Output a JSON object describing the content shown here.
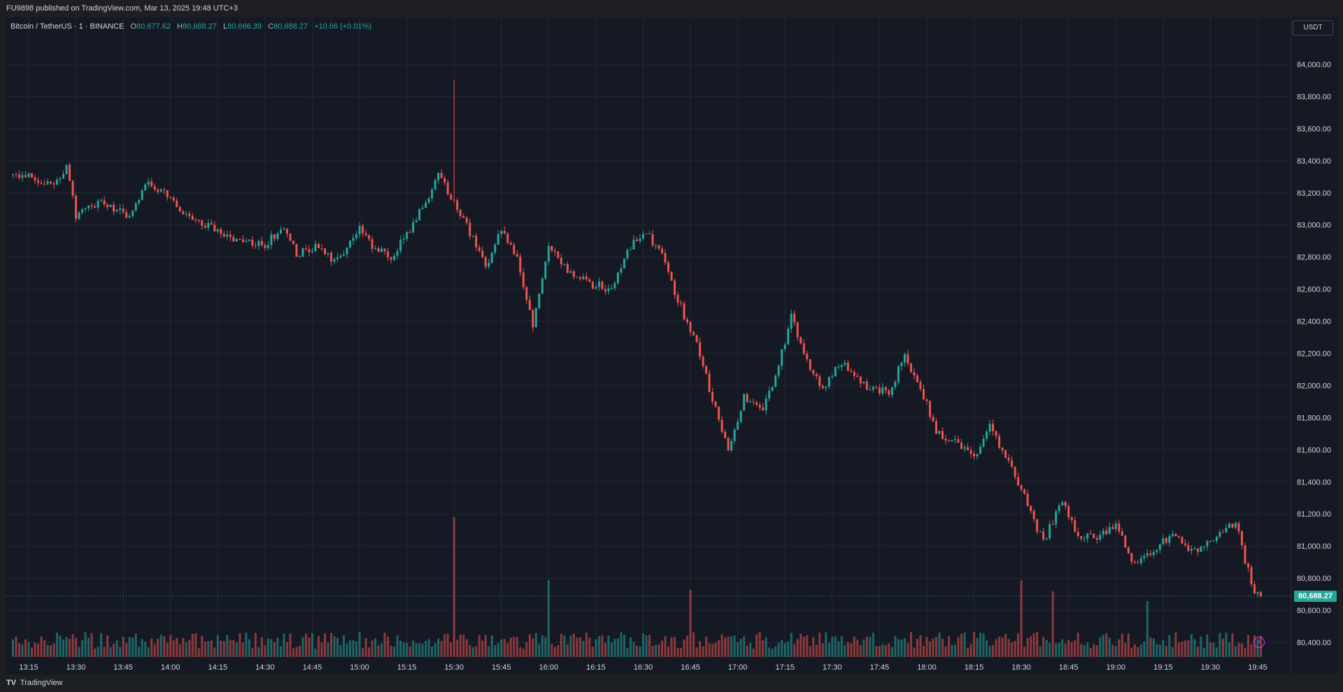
{
  "header": {
    "publisher_line": "FU9898 published on TradingView.com, Mar 13, 2025 19:48 UTC+3"
  },
  "legend": {
    "symbol": "Bitcoin / TetherUS · 1 · BINANCE",
    "open_label": "O",
    "open": "80,677.62",
    "high_label": "H",
    "high": "80,688.27",
    "low_label": "L",
    "low": "80,666.39",
    "close_label": "C",
    "close": "80,688.27",
    "change": "+10.66 (+0.01%)"
  },
  "price_axis": {
    "currency": "USDT",
    "last_price": "80,688.27"
  },
  "footer": {
    "logo": "TV",
    "brand": "TradingView"
  },
  "colors": {
    "up": "#26a69a",
    "down": "#ef5350",
    "background": "#151924",
    "grid": "#232733",
    "axis_text": "#d1d4dc",
    "alert": "#e040fb"
  },
  "icons": {
    "alert": "lightning-alert-icon"
  },
  "chart_data": {
    "type": "candlestick",
    "symbol": "BTCUSDT",
    "interval": "1",
    "exchange": "BINANCE",
    "x_ticks": [
      "13:15",
      "13:30",
      "13:45",
      "14:00",
      "14:15",
      "14:30",
      "14:45",
      "15:00",
      "15:15",
      "15:30",
      "15:45",
      "16:00",
      "16:15",
      "16:30",
      "16:45",
      "17:00",
      "17:15",
      "17:30",
      "17:45",
      "18:00",
      "18:15",
      "18:30",
      "18:45",
      "19:00",
      "19:15",
      "19:30",
      "19:45"
    ],
    "y_ticks": [
      "84,000.00",
      "83,800.00",
      "83,600.00",
      "83,400.00",
      "83,200.00",
      "83,000.00",
      "82,800.00",
      "82,600.00",
      "82,400.00",
      "82,200.00",
      "82,000.00",
      "81,800.00",
      "81,600.00",
      "81,400.00",
      "81,200.00",
      "81,000.00",
      "80,800.00",
      "80,600.00",
      "80,400.00"
    ],
    "ylim": [
      80350,
      84180
    ],
    "last_price": 80688.27,
    "grid": true,
    "path_keypoints": [
      {
        "time": "13:10",
        "price": 83300
      },
      {
        "time": "13:15",
        "price": 83320
      },
      {
        "time": "13:20",
        "price": 83260
      },
      {
        "time": "13:25",
        "price": 83280
      },
      {
        "time": "13:27",
        "price": 83390
      },
      {
        "time": "13:30",
        "price": 83050
      },
      {
        "time": "13:38",
        "price": 83150
      },
      {
        "time": "13:47",
        "price": 83050
      },
      {
        "time": "13:52",
        "price": 83270
      },
      {
        "time": "13:58",
        "price": 83200
      },
      {
        "time": "14:05",
        "price": 83060
      },
      {
        "time": "14:13",
        "price": 82980
      },
      {
        "time": "14:22",
        "price": 82900
      },
      {
        "time": "14:30",
        "price": 82880
      },
      {
        "time": "14:36",
        "price": 82990
      },
      {
        "time": "14:40",
        "price": 82820
      },
      {
        "time": "14:47",
        "price": 82860
      },
      {
        "time": "14:52",
        "price": 82760
      },
      {
        "time": "15:00",
        "price": 82970
      },
      {
        "time": "15:05",
        "price": 82850
      },
      {
        "time": "15:10",
        "price": 82800
      },
      {
        "time": "15:17",
        "price": 83000
      },
      {
        "time": "15:25",
        "price": 83300
      },
      {
        "time": "15:30",
        "price": 83150
      },
      {
        "time": "15:35",
        "price": 82950
      },
      {
        "time": "15:40",
        "price": 82740
      },
      {
        "time": "15:45",
        "price": 82980
      },
      {
        "time": "15:50",
        "price": 82780
      },
      {
        "time": "15:55",
        "price": 82380
      },
      {
        "time": "16:00",
        "price": 82860
      },
      {
        "time": "16:05",
        "price": 82730
      },
      {
        "time": "16:12",
        "price": 82640
      },
      {
        "time": "16:20",
        "price": 82600
      },
      {
        "time": "16:25",
        "price": 82850
      },
      {
        "time": "16:30",
        "price": 82960
      },
      {
        "time": "16:35",
        "price": 82850
      },
      {
        "time": "16:40",
        "price": 82580
      },
      {
        "time": "16:48",
        "price": 82200
      },
      {
        "time": "16:52",
        "price": 81900
      },
      {
        "time": "16:57",
        "price": 81620
      },
      {
        "time": "17:02",
        "price": 81920
      },
      {
        "time": "17:08",
        "price": 81850
      },
      {
        "time": "17:12",
        "price": 82050
      },
      {
        "time": "17:17",
        "price": 82430
      },
      {
        "time": "17:22",
        "price": 82150
      },
      {
        "time": "17:27",
        "price": 81980
      },
      {
        "time": "17:33",
        "price": 82150
      },
      {
        "time": "17:40",
        "price": 82000
      },
      {
        "time": "17:48",
        "price": 81960
      },
      {
        "time": "17:53",
        "price": 82180
      },
      {
        "time": "17:58",
        "price": 82000
      },
      {
        "time": "18:03",
        "price": 81700
      },
      {
        "time": "18:10",
        "price": 81640
      },
      {
        "time": "18:15",
        "price": 81540
      },
      {
        "time": "18:20",
        "price": 81740
      },
      {
        "time": "18:25",
        "price": 81560
      },
      {
        "time": "18:30",
        "price": 81350
      },
      {
        "time": "18:37",
        "price": 81020
      },
      {
        "time": "18:43",
        "price": 81300
      },
      {
        "time": "18:48",
        "price": 81050
      },
      {
        "time": "18:55",
        "price": 81060
      },
      {
        "time": "19:00",
        "price": 81130
      },
      {
        "time": "19:05",
        "price": 80900
      },
      {
        "time": "19:10",
        "price": 80940
      },
      {
        "time": "19:18",
        "price": 81080
      },
      {
        "time": "19:25",
        "price": 80960
      },
      {
        "time": "19:30",
        "price": 81030
      },
      {
        "time": "19:38",
        "price": 81150
      },
      {
        "time": "19:40",
        "price": 80980
      },
      {
        "time": "19:44",
        "price": 80720
      },
      {
        "time": "19:46",
        "price": 80688
      }
    ],
    "spike": {
      "time": "15:30",
      "high": 83900
    },
    "volume_spikes": [
      {
        "time": "15:30",
        "relative": 1.0
      },
      {
        "time": "16:00",
        "relative": 0.55
      },
      {
        "time": "16:45",
        "relative": 0.48
      },
      {
        "time": "18:30",
        "relative": 0.55
      },
      {
        "time": "18:40",
        "relative": 0.47
      },
      {
        "time": "19:10",
        "relative": 0.4
      }
    ]
  }
}
